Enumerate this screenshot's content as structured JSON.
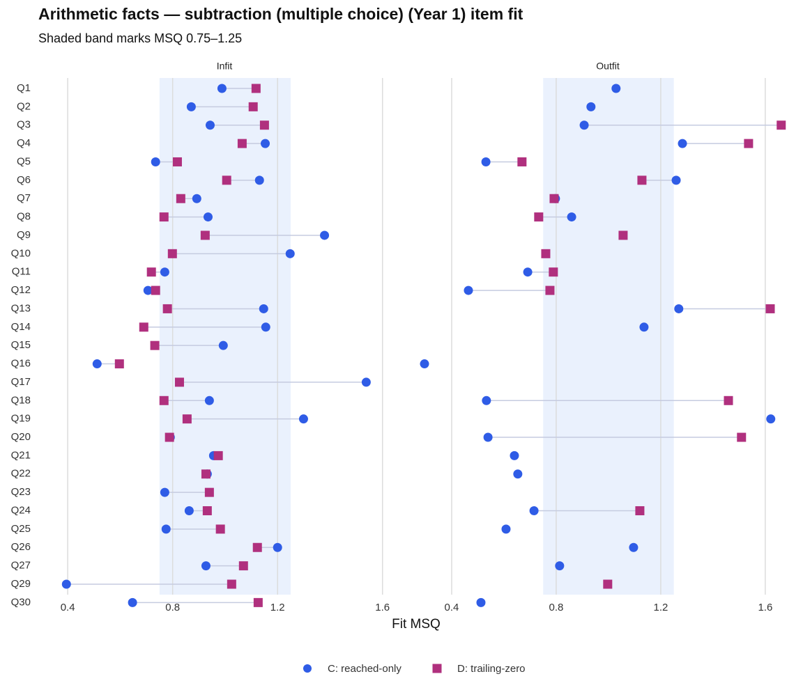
{
  "chart_data": {
    "type": "dot",
    "title": "Arithmetic facts — subtraction (multiple choice) (Year 1) item fit",
    "subtitle": "Shaded band marks MSQ 0.75–1.25",
    "xlabel": "Fit MSQ",
    "panels": [
      "Infit",
      "Outfit"
    ],
    "band": [
      0.75,
      1.25
    ],
    "xlim": [
      0.28,
      1.715
    ],
    "xticks": [
      0.4,
      0.8,
      1.2,
      1.6
    ],
    "grid": true,
    "legend": "bottom",
    "categories": [
      "Q1",
      "Q2",
      "Q3",
      "Q4",
      "Q5",
      "Q6",
      "Q7",
      "Q8",
      "Q9",
      "Q10",
      "Q11",
      "Q12",
      "Q13",
      "Q14",
      "Q15",
      "Q16",
      "Q17",
      "Q18",
      "Q19",
      "Q20",
      "Q21",
      "Q22",
      "Q23",
      "Q24",
      "Q25",
      "Q26",
      "Q27",
      "Q29",
      "Q30"
    ],
    "series": [
      {
        "name": "C: reached-only",
        "color": "#2f5ce6",
        "marker": "circle",
        "values": [
          [
            0.988,
            0.871,
            0.943,
            1.153,
            0.735,
            1.131,
            0.892,
            0.935,
            1.379,
            1.248,
            0.77,
            0.706,
            1.147,
            1.155,
            0.993,
            0.512,
            1.538,
            0.94,
            1.299,
            0.791,
            0.956,
            0.932,
            0.77,
            0.863,
            0.775,
            1.2,
            0.927,
            0.395,
            0.647
          ],
          [
            1.029,
            0.933,
            0.907,
            1.283,
            0.531,
            1.259,
            0.797,
            0.859,
            null,
            null,
            0.691,
            0.464,
            1.269,
            1.136,
            null,
            0.296,
            null,
            0.533,
            1.621,
            0.539,
            0.64,
            0.653,
            null,
            0.715,
            0.608,
            1.096,
            0.813,
            null,
            0.512
          ]
        ]
      },
      {
        "name": "D: trailing-zero",
        "color": "#b0307e",
        "marker": "square",
        "values": [
          [
            1.118,
            1.107,
            1.15,
            1.065,
            0.818,
            1.006,
            0.831,
            0.767,
            0.924,
            0.799,
            0.719,
            0.735,
            0.78,
            0.69,
            0.732,
            0.597,
            0.826,
            0.767,
            0.855,
            0.788,
            0.974,
            0.927,
            0.94,
            0.932,
            0.982,
            1.123,
            1.07,
            1.025,
            1.126
          ],
          [
            null,
            null,
            1.661,
            1.536,
            0.669,
            1.128,
            0.792,
            0.733,
            1.056,
            0.76,
            0.789,
            0.776,
            1.619,
            null,
            null,
            null,
            null,
            1.459,
            null,
            1.509,
            null,
            null,
            null,
            1.12,
            null,
            null,
            null,
            0.997,
            null
          ]
        ]
      }
    ]
  }
}
